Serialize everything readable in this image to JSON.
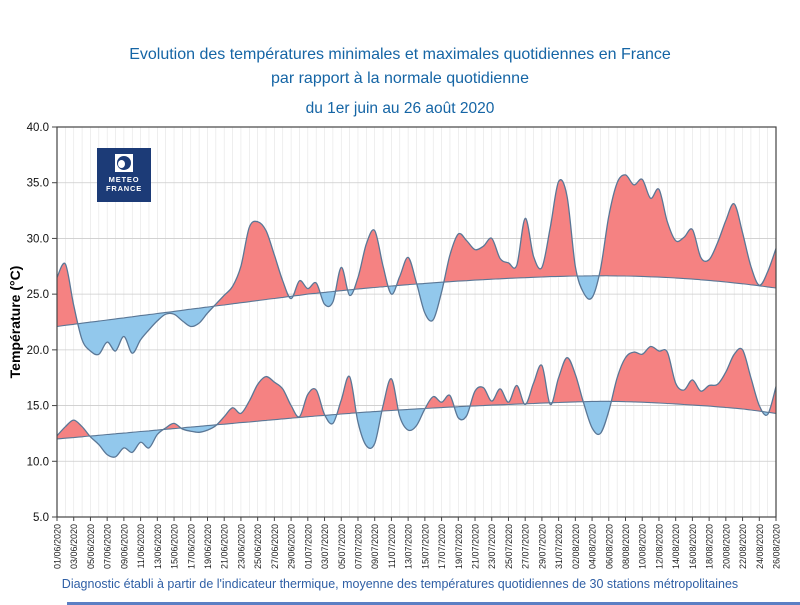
{
  "header": {
    "title_line1": "Evolution des températures minimales et maximales quotidiennes en France",
    "title_line2": "par rapport à la normale quotidienne",
    "subtitle": "du 1er juin au 26 août 2020"
  },
  "logo": {
    "line1": "METEO",
    "line2": "FRANCE"
  },
  "footer": {
    "caption": "Diagnostic établi à partir de l'indicateur thermique, moyenne des températures quotidiennes de 30 stations métropolitaines"
  },
  "colors": {
    "title_blue": "#1565a5",
    "above_normal": "#f58282",
    "below_normal": "#92c8ec",
    "line": "#5a7796",
    "grid_vertical": "#e4e4e4",
    "grid_horizontal": "#cccccc",
    "frame": "#444444",
    "logo_navy": "#1c3b77"
  },
  "chart_data": {
    "type": "area",
    "title": "Evolution des températures minimales et maximales quotidiennes en France par rapport à la normale quotidienne du 1er juin au 26 août 2020",
    "ylabel": "Température (°C)",
    "ylim": [
      5,
      40
    ],
    "y_ticks": [
      5,
      10,
      15,
      20,
      25,
      30,
      35,
      40
    ],
    "y_tick_labels": [
      "5.0",
      "10.0",
      "15.0",
      "20.0",
      "25.0",
      "30.0",
      "35.0",
      "40.0"
    ],
    "x_start": "01/06/2020",
    "x_end": "26/08/2020",
    "sampling": "daily",
    "x_tick_every": 2,
    "x_tick_labels": [
      "01/06/2020",
      "03/06/2020",
      "05/06/2020",
      "07/06/2020",
      "09/06/2020",
      "11/06/2020",
      "13/06/2020",
      "15/06/2020",
      "17/06/2020",
      "19/06/2020",
      "21/06/2020",
      "23/06/2020",
      "25/06/2020",
      "27/06/2020",
      "29/06/2020",
      "01/07/2020",
      "03/07/2020",
      "05/07/2020",
      "07/07/2020",
      "09/07/2020",
      "11/07/2020",
      "13/07/2020",
      "15/07/2020",
      "17/07/2020",
      "19/07/2020",
      "21/07/2020",
      "23/07/2020",
      "25/07/2020",
      "27/07/2020",
      "29/07/2020",
      "31/07/2020",
      "02/08/2020",
      "04/08/2020",
      "06/08/2020",
      "08/08/2020",
      "10/08/2020",
      "12/08/2020",
      "14/08/2020",
      "16/08/2020",
      "18/08/2020",
      "20/08/2020",
      "22/08/2020",
      "24/08/2020",
      "26/08/2020"
    ],
    "legend_position": "none",
    "grid": true,
    "fill_rule": "red = température au-dessus de la normale, bleu = en dessous",
    "series": [
      {
        "name": "tmax_normale",
        "values": [
          22.1,
          22.2,
          22.29,
          22.39,
          22.49,
          22.58,
          22.68,
          22.78,
          22.87,
          22.97,
          23.07,
          23.16,
          23.26,
          23.36,
          23.45,
          23.55,
          23.65,
          23.74,
          23.84,
          23.94,
          24.03,
          24.13,
          24.23,
          24.32,
          24.42,
          24.52,
          24.61,
          24.71,
          24.81,
          24.9,
          25.0,
          25.08,
          25.16,
          25.24,
          25.31,
          25.39,
          25.46,
          25.53,
          25.6,
          25.66,
          25.73,
          25.79,
          25.85,
          25.91,
          25.96,
          26.02,
          26.07,
          26.12,
          26.17,
          26.21,
          26.26,
          26.3,
          26.34,
          26.38,
          26.42,
          26.45,
          26.48,
          26.51,
          26.54,
          26.57,
          26.59,
          26.61,
          26.63,
          26.64,
          26.65,
          26.65,
          26.65,
          26.64,
          26.63,
          26.61,
          26.59,
          26.56,
          26.53,
          26.49,
          26.45,
          26.4,
          26.35,
          26.29,
          26.23,
          26.16,
          26.09,
          26.01,
          25.93,
          25.84,
          25.75,
          25.65,
          25.55
        ]
      },
      {
        "name": "tmax_observee",
        "values": [
          26.5,
          27.7,
          24.0,
          20.9,
          19.9,
          19.6,
          20.7,
          19.9,
          21.2,
          19.7,
          20.9,
          21.8,
          22.6,
          23.2,
          23.2,
          22.6,
          22.1,
          22.4,
          23.3,
          24.1,
          24.9,
          25.7,
          27.5,
          31.0,
          31.5,
          30.7,
          28.5,
          26.2,
          24.6,
          26.2,
          25.5,
          26.0,
          24.1,
          24.3,
          27.4,
          24.9,
          26.5,
          29.5,
          30.7,
          27.5,
          25.0,
          26.6,
          28.3,
          26.0,
          23.3,
          22.7,
          25.2,
          28.5,
          30.4,
          29.8,
          29.0,
          29.3,
          30.0,
          28.2,
          27.8,
          27.6,
          31.8,
          28.4,
          27.4,
          31.0,
          35.1,
          33.8,
          27.5,
          25.1,
          24.7,
          27.2,
          32.0,
          35.0,
          35.7,
          34.8,
          35.3,
          33.6,
          34.4,
          31.5,
          29.8,
          30.1,
          30.8,
          28.3,
          28.1,
          29.6,
          31.6,
          33.1,
          30.5,
          27.5,
          25.8,
          27.0,
          29.1
        ]
      },
      {
        "name": "tmin_normale",
        "values": [
          12.0,
          12.07,
          12.13,
          12.2,
          12.27,
          12.33,
          12.4,
          12.47,
          12.53,
          12.6,
          12.67,
          12.73,
          12.8,
          12.87,
          12.93,
          13.0,
          13.07,
          13.13,
          13.2,
          13.27,
          13.33,
          13.4,
          13.47,
          13.53,
          13.6,
          13.67,
          13.73,
          13.8,
          13.87,
          13.93,
          14.0,
          14.06,
          14.12,
          14.18,
          14.24,
          14.3,
          14.36,
          14.41,
          14.46,
          14.51,
          14.56,
          14.61,
          14.66,
          14.7,
          14.74,
          14.78,
          14.82,
          14.86,
          14.9,
          14.94,
          14.97,
          15.0,
          15.04,
          15.07,
          15.1,
          15.13,
          15.16,
          15.19,
          15.22,
          15.25,
          15.28,
          15.3,
          15.33,
          15.35,
          15.37,
          15.38,
          15.38,
          15.37,
          15.35,
          15.33,
          15.3,
          15.27,
          15.23,
          15.19,
          15.15,
          15.1,
          15.05,
          15.0,
          14.95,
          14.89,
          14.83,
          14.76,
          14.69,
          14.6,
          14.5,
          14.4,
          14.3
        ]
      },
      {
        "name": "tmin_observee",
        "values": [
          12.3,
          13.1,
          13.7,
          13.1,
          12.2,
          11.5,
          10.6,
          10.4,
          11.2,
          10.8,
          11.7,
          11.2,
          12.4,
          13.0,
          13.4,
          12.9,
          12.7,
          12.6,
          12.8,
          13.2,
          14.0,
          14.8,
          14.3,
          15.4,
          16.9,
          17.6,
          17.1,
          16.5,
          15.0,
          14.0,
          16.0,
          16.4,
          14.2,
          13.4,
          15.5,
          17.6,
          13.5,
          11.4,
          11.6,
          15.0,
          17.4,
          14.0,
          12.8,
          13.2,
          14.7,
          15.8,
          15.3,
          15.9,
          13.9,
          14.1,
          16.3,
          16.6,
          15.4,
          16.5,
          15.3,
          16.8,
          15.1,
          17.0,
          18.6,
          15.1,
          17.5,
          19.3,
          17.8,
          15.2,
          13.0,
          12.5,
          14.5,
          17.5,
          19.3,
          19.8,
          19.6,
          20.3,
          19.9,
          19.8,
          17.0,
          16.4,
          17.3,
          16.3,
          16.8,
          16.9,
          18.0,
          19.6,
          20.0,
          17.5,
          15.0,
          14.2,
          16.7
        ]
      }
    ]
  }
}
